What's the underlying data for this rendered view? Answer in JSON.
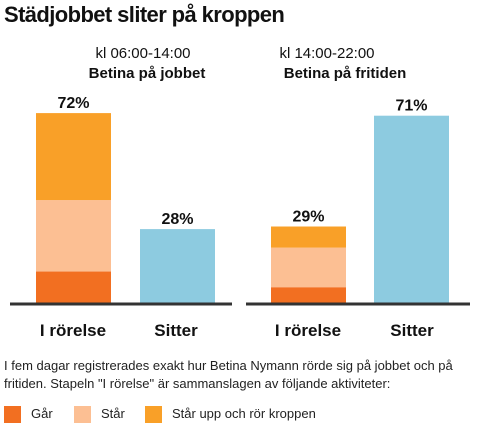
{
  "title": "Städjobbet sliter på kroppen",
  "caption": "I fem dagar registrerades exakt hur Betina Nymann rörde sig på jobbet och på fritiden. Stapeln \"I rörelse\" är sammanslagen av följande aktiviteter:",
  "colors": {
    "gar": "#f26f21",
    "star": "#fcbf93",
    "star_upp": "#f9a028",
    "sitter": "#8dcbe0",
    "axis": "#333333"
  },
  "legend": [
    {
      "label": "Går",
      "color": "#f26f21"
    },
    {
      "label": "Står",
      "color": "#fcbf93"
    },
    {
      "label": "Står upp och rör kroppen",
      "color": "#f9a028"
    }
  ],
  "chart_data": [
    {
      "type": "bar",
      "stacked": true,
      "time": "kl 06:00-14:00",
      "subtitle": "Betina på jobbet",
      "categories": [
        "I rörelse",
        "Sitter"
      ],
      "totals": [
        "72%",
        "28%"
      ],
      "ylim": [
        0,
        80
      ],
      "bars": [
        {
          "category": "I rörelse",
          "total": 72,
          "segments": [
            {
              "series": "Går",
              "value": 12,
              "color": "#f26f21"
            },
            {
              "series": "Står",
              "value": 27,
              "color": "#fcbf93"
            },
            {
              "series": "Står upp och rör kroppen",
              "value": 33,
              "color": "#f9a028"
            }
          ]
        },
        {
          "category": "Sitter",
          "total": 28,
          "segments": [
            {
              "series": "Sitter",
              "value": 28,
              "color": "#8dcbe0"
            }
          ]
        }
      ]
    },
    {
      "type": "bar",
      "stacked": true,
      "time": "kl 14:00-22:00",
      "subtitle": "Betina på fritiden",
      "categories": [
        "I rörelse",
        "Sitter"
      ],
      "totals": [
        "29%",
        "71%"
      ],
      "ylim": [
        0,
        80
      ],
      "bars": [
        {
          "category": "I rörelse",
          "total": 29,
          "segments": [
            {
              "series": "Går",
              "value": 6,
              "color": "#f26f21"
            },
            {
              "series": "Står",
              "value": 15,
              "color": "#fcbf93"
            },
            {
              "series": "Står upp och rör kroppen",
              "value": 8,
              "color": "#f9a028"
            }
          ]
        },
        {
          "category": "Sitter",
          "total": 71,
          "segments": [
            {
              "series": "Sitter",
              "value": 71,
              "color": "#8dcbe0"
            }
          ]
        }
      ]
    }
  ]
}
